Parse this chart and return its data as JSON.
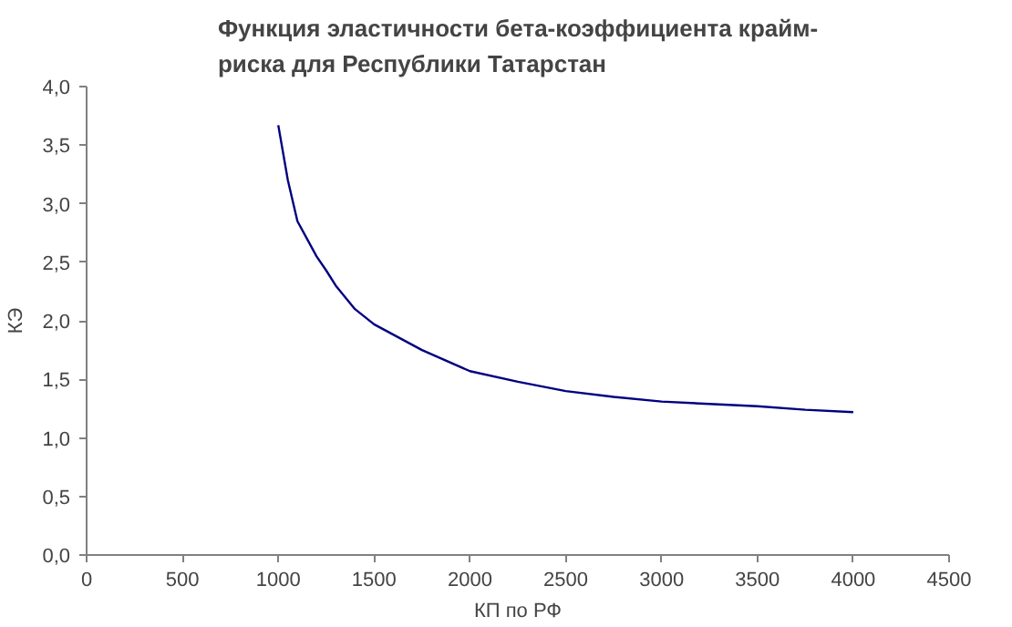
{
  "chart_data": {
    "type": "line",
    "title": "Функция эластичности бета-коэффициента крайм-\nриска для  Республики Татарстан",
    "xlabel": "КП по РФ",
    "ylabel": "КЭ",
    "x": [
      1000,
      1050,
      1100,
      1200,
      1250,
      1300,
      1400,
      1500,
      1750,
      2000,
      2250,
      2500,
      2750,
      3000,
      3250,
      3500,
      3750,
      4000
    ],
    "series": [
      {
        "color": "#000080",
        "values": [
          3.67,
          3.2,
          2.85,
          2.55,
          2.43,
          2.3,
          2.1,
          1.97,
          1.75,
          1.57,
          1.48,
          1.4,
          1.35,
          1.31,
          1.29,
          1.27,
          1.24,
          1.22
        ]
      }
    ],
    "xlim": [
      0,
      4500
    ],
    "xticks": [
      0,
      500,
      1000,
      1500,
      2000,
      2500,
      3000,
      3500,
      4000,
      4500
    ],
    "ylim": [
      0,
      4
    ],
    "yticks": [
      {
        "value": 0,
        "label": "0,0"
      },
      {
        "value": 0.5,
        "label": "0,5"
      },
      {
        "value": 1,
        "label": "1,0"
      },
      {
        "value": 1.5,
        "label": "1,5"
      },
      {
        "value": 2,
        "label": "2,0"
      },
      {
        "value": 2.5,
        "label": "2,5"
      },
      {
        "value": 3,
        "label": "3,0"
      },
      {
        "value": 3.5,
        "label": "3,5"
      },
      {
        "value": 4,
        "label": "4,0"
      }
    ],
    "grid": false,
    "marker": "none",
    "line_style": "solid"
  }
}
